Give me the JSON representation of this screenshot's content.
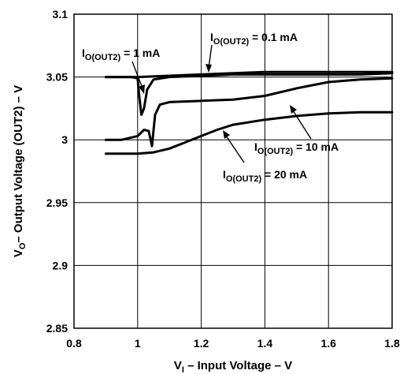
{
  "chart_data": {
    "type": "line",
    "xlabel": {
      "main": "V",
      "sub": "I",
      "rest": " – Input Voltage – V"
    },
    "ylabel": {
      "main": "V",
      "sub": "O",
      "rest": "– Output Voltage (OUT2) – V"
    },
    "xlim": [
      0.8,
      1.8
    ],
    "ylim": [
      2.85,
      3.1
    ],
    "x_ticks": [
      "0.8",
      "1",
      "1.2",
      "1.4",
      "1.6",
      "1.8"
    ],
    "y_ticks": [
      "2.85",
      "2.9",
      "2.95",
      "3",
      "3.05",
      "3.1"
    ],
    "grid": true,
    "series": [
      {
        "name": "I_O(OUT2) = 0.1 mA",
        "label": {
          "main": "I",
          "sub": "O(OUT2)",
          "rest": " = 0.1 mA"
        },
        "x": [
          0.9,
          1.0,
          1.1,
          1.2,
          1.3,
          1.4,
          1.5,
          1.6,
          1.7,
          1.8
        ],
        "y": [
          3.05,
          3.05,
          3.051,
          3.052,
          3.053,
          3.054,
          3.054,
          3.054,
          3.054,
          3.054
        ]
      },
      {
        "name": "I_O(OUT2) = 1 mA",
        "label": {
          "main": "I",
          "sub": "O(OUT2)",
          "rest": " = 1 mA"
        },
        "x": [
          0.9,
          0.98,
          1.0,
          1.005,
          1.012,
          1.02,
          1.03,
          1.05,
          1.1,
          1.2,
          1.3,
          1.4,
          1.5,
          1.6,
          1.7,
          1.8
        ],
        "y": [
          3.05,
          3.05,
          3.049,
          3.035,
          3.02,
          3.025,
          3.04,
          3.048,
          3.05,
          3.051,
          3.052,
          3.052,
          3.052,
          3.052,
          3.052,
          3.053
        ]
      },
      {
        "name": "I_O(OUT2) = 10 mA",
        "label": {
          "main": "I",
          "sub": "O(OUT2)",
          "rest": " = 10 mA"
        },
        "x": [
          0.9,
          0.95,
          1.0,
          1.02,
          1.035,
          1.045,
          1.055,
          1.07,
          1.1,
          1.2,
          1.3,
          1.4,
          1.5,
          1.6,
          1.7,
          1.8
        ],
        "y": [
          3.0,
          3.0,
          3.003,
          3.008,
          3.007,
          2.995,
          3.02,
          3.028,
          3.03,
          3.031,
          3.032,
          3.035,
          3.041,
          3.046,
          3.048,
          3.049
        ]
      },
      {
        "name": "I_O(OUT2) = 20 mA",
        "label": {
          "main": "I",
          "sub": "O(OUT2)",
          "rest": " = 20 mA"
        },
        "x": [
          0.9,
          1.0,
          1.05,
          1.1,
          1.15,
          1.2,
          1.25,
          1.3,
          1.4,
          1.5,
          1.6,
          1.7,
          1.8
        ],
        "y": [
          2.989,
          2.989,
          2.99,
          2.993,
          2.998,
          3.003,
          3.008,
          3.012,
          3.016,
          3.019,
          3.021,
          3.022,
          3.022
        ]
      }
    ]
  }
}
